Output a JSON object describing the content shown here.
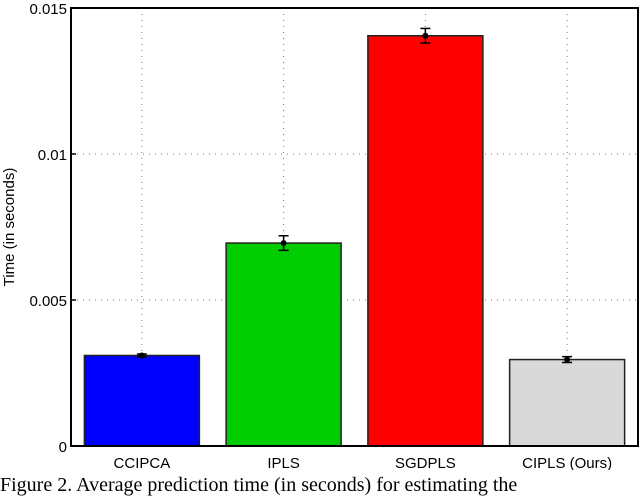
{
  "chart_data": {
    "type": "bar",
    "title": "",
    "xlabel": "",
    "ylabel": "Time (in seconds)",
    "categories": [
      "CCIPCA",
      "IPLS",
      "SGDPLS",
      "CIPLS (Ours)"
    ],
    "values": [
      0.0031,
      0.00695,
      0.01405,
      0.00296
    ],
    "errors": [
      5e-05,
      0.00025,
      0.00025,
      0.0001
    ],
    "colors": [
      "#0000ff",
      "#00cc00",
      "#ff0000",
      "#d9d9d9"
    ],
    "ylim": [
      0,
      0.015
    ],
    "yticks": [
      0,
      0.005,
      0.01,
      0.015
    ],
    "ytick_labels": [
      "0",
      "0.005",
      "0.01",
      "0.015"
    ],
    "grid": true,
    "grid_style": "dotted",
    "legend": null
  },
  "caption": "Figure 2. Average prediction time (in seconds) for estimating the"
}
